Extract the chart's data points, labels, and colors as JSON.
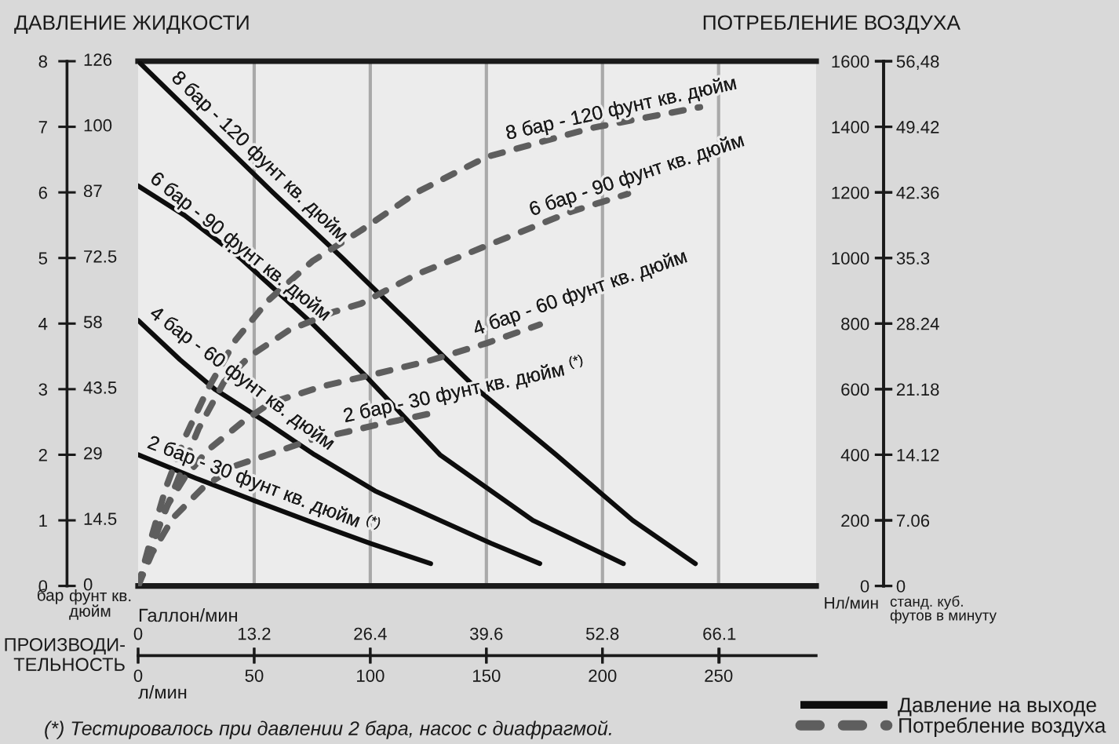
{
  "chart_data": {
    "type": "line",
    "ylabel": "ДАВЛЕНИЕ ЖИДКОСТИ",
    "y2label": "ПОТРЕБЛЕНИЕ ВОЗДУХА",
    "xlabel": "ПРОИЗВОДИ-\nТЕЛЬНОСТЬ",
    "xlim": [
      0,
      292
    ],
    "xticks": [
      0,
      50,
      100,
      150,
      200,
      250
    ],
    "x2lim": [
      0,
      77.1
    ],
    "x2ticks": [
      0,
      13.2,
      26.4,
      39.6,
      52.8,
      66.1
    ],
    "ylim": [
      0,
      8
    ],
    "yticks": [
      0,
      1,
      2,
      3,
      4,
      5,
      6,
      7,
      8
    ],
    "y2lim": [
      0,
      1600
    ],
    "y2ticks": [
      0,
      200,
      400,
      600,
      800,
      1000,
      1200,
      1400,
      1600
    ],
    "y3lim": [
      0,
      56.48
    ],
    "y3ticks": [
      0,
      7.06,
      14.12,
      21.18,
      28.24,
      35.3,
      42.36,
      49.42,
      {
        "value": 56.48,
        "label": "56,48"
      }
    ],
    "grid": true,
    "legend": "bottom right",
    "series": [
      {
        "name": "Давление на выходе",
        "color": "#0d0d0d",
        "axis": "y",
        "line_style": "solid",
        "x": [
          0,
          29,
          58,
          88,
          117,
          146,
          180,
          213,
          240
        ],
        "values": [
          8,
          7,
          6,
          5,
          4,
          3,
          2,
          1,
          0.34
        ]
      },
      {
        "color": "#0d0d0d",
        "axis": "y",
        "line_style": "solid",
        "x": [
          0,
          20,
          44,
          75,
          98,
          130,
          150,
          170,
          209
        ],
        "values": [
          6.1,
          5.65,
          5,
          4,
          3.2,
          2,
          1.5,
          1,
          0.34
        ]
      },
      {
        "color": "#0d0d0d",
        "axis": "y",
        "line_style": "solid",
        "x": [
          0,
          18,
          33,
          55,
          76,
          102,
          130,
          152,
          173
        ],
        "values": [
          4.05,
          3.45,
          3,
          2.5,
          2,
          1.45,
          1,
          0.65,
          0.34
        ]
      },
      {
        "color": "#0d0d0d",
        "axis": "y",
        "line_style": "solid",
        "x": [
          0,
          25,
          50,
          75,
          100,
          126
        ],
        "values": [
          2,
          1.64,
          1.3,
          0.97,
          0.65,
          0.34
        ]
      },
      {
        "name": "Потребление воздуха",
        "color": "#5e5e5e",
        "axis": "y2",
        "line_style": "dashed",
        "x": [
          0,
          5,
          12,
          20,
          30,
          42,
          56,
          75,
          96,
          120,
          150,
          195,
          242
        ],
        "values": [
          0,
          130,
          300,
          450,
          600,
          750,
          870,
          990,
          1084,
          1200,
          1308,
          1396,
          1460
        ]
      },
      {
        "color": "#5e5e5e",
        "axis": "y2",
        "line_style": "dashed",
        "x": [
          0,
          6,
          15,
          26,
          37,
          48,
          65,
          84,
          96,
          120,
          150,
          186,
          211
        ],
        "values": [
          0,
          127,
          287,
          479,
          622,
          700,
          780,
          835,
          861,
          950,
          1037,
          1140,
          1196
        ]
      },
      {
        "color": "#5e5e5e",
        "axis": "y2",
        "line_style": "dashed",
        "x": [
          0,
          5,
          12,
          20,
          30,
          45,
          57,
          80,
          102,
          125,
          150,
          173
        ],
        "values": [
          0,
          100,
          239,
          330,
          414,
          500,
          558,
          610,
          646,
          686,
          740,
          797
        ]
      },
      {
        "color": "#5e5e5e",
        "axis": "y2",
        "line_style": "dashed",
        "x": [
          0,
          6,
          15,
          28,
          42,
          60,
          75,
          90,
          102,
          126
        ],
        "values": [
          0,
          100,
          207,
          300,
          367,
          410,
          447,
          470,
          490,
          526
        ]
      }
    ],
    "annotations": [
      "0",
      "14.5",
      "29",
      "43.5",
      "58",
      "72.5",
      "87",
      "100",
      "126",
      "бар",
      "фунт кв.\nдюйм",
      "Нл/мин",
      "станд. куб.\nфутов в минуту",
      "Галлон/мин",
      "л/мин",
      "(*) Тестировалось при давлении 2 бара, насос с диафрагмой.",
      {
        "text": "8 бар - 120 фунт кв. дюйм",
        "x": 11,
        "y": 7.62
      },
      {
        "text": "6 бар - 90 фунт кв. дюйм",
        "x": 2,
        "y": 6.06
      },
      {
        "text": "4 бар - 60 фунт кв. дюйм",
        "x": 2,
        "y": 4.0
      },
      {
        "text": "2 бар - 30 фунт кв. дюйм $^{(*)}$",
        "x": 2,
        "y": 1.97
      },
      {
        "text": "8 бар - 120 фунт кв. дюйм",
        "x": 160,
        "y": 6.64
      },
      {
        "text": "6 бар - 90 фунт кв. дюйм",
        "x": 171,
        "y": 5.48
      },
      {
        "text": "4 бар - 60 фунт кв. дюйм",
        "x": 147,
        "y": 3.66
      },
      {
        "text": "2 бар - 30 фунт кв. дюйм $^{(*)}$",
        "x": 90,
        "y": 2.33
      }
    ]
  }
}
